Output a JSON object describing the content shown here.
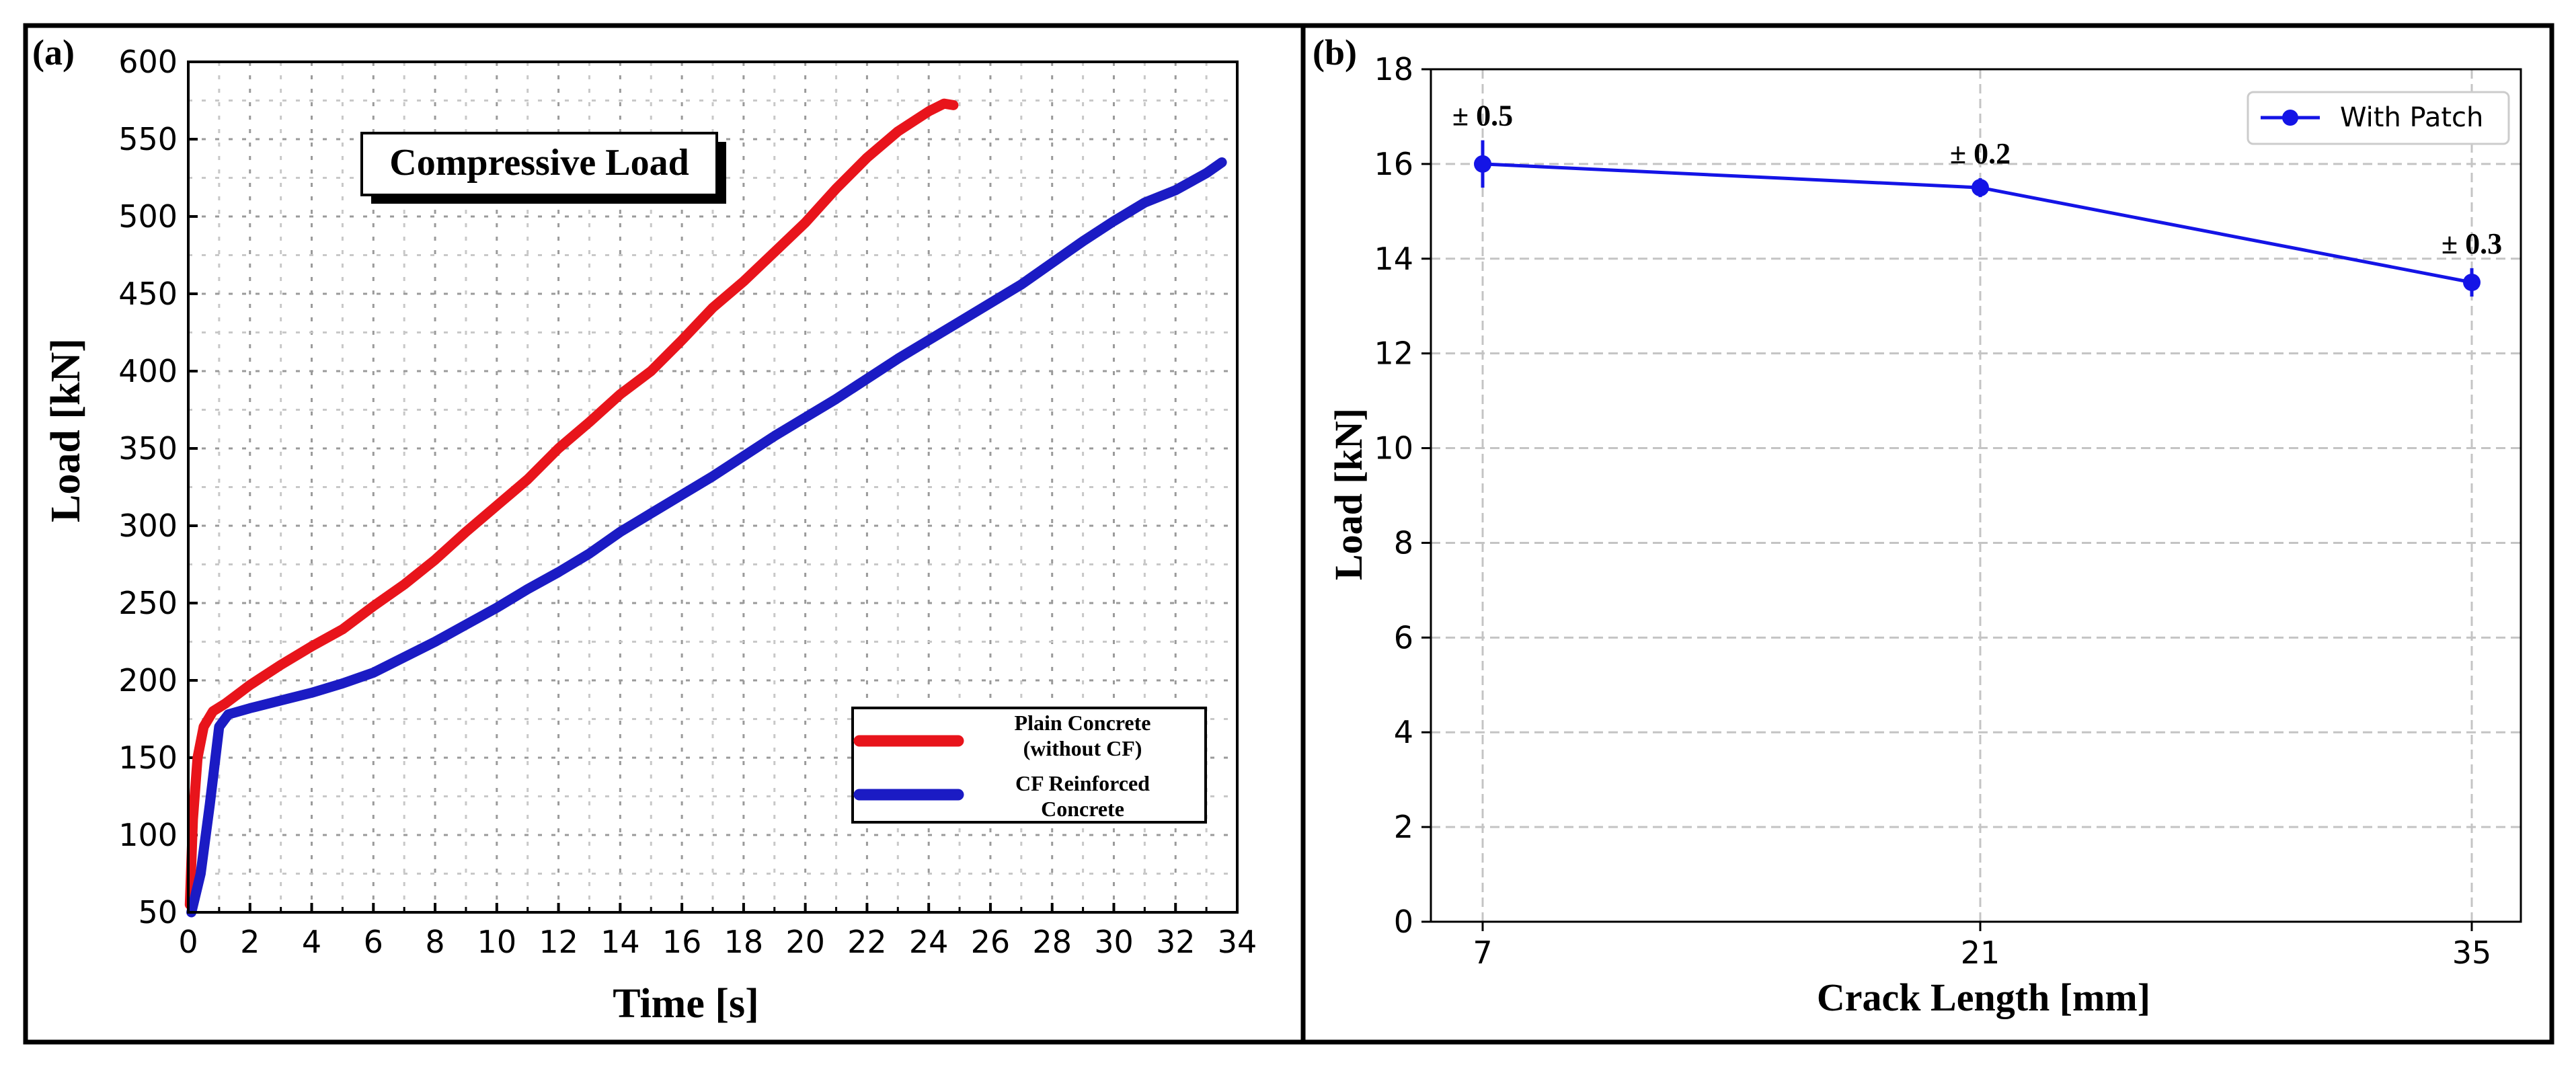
{
  "colors": {
    "plain": "#e8141b",
    "cf": "#1b1bc4",
    "patch": "#1414e6",
    "frame": "#000000",
    "grid_a": "#9a9a9a",
    "grid_b": "#c8c8c8"
  },
  "chart_data": [
    {
      "type": "line",
      "panel_label": "(a)",
      "title": "Compressive Load",
      "xlabel": "Time [s]",
      "ylabel": "Load [kN]",
      "xlim": [
        0,
        34
      ],
      "ylim": [
        50,
        600
      ],
      "x_ticks": [
        "0",
        "2",
        "4",
        "6",
        "8",
        "10",
        "12",
        "14",
        "16",
        "18",
        "20",
        "22",
        "24",
        "26",
        "28",
        "30",
        "32",
        "34"
      ],
      "y_ticks": [
        "50",
        "100",
        "150",
        "200",
        "250",
        "300",
        "350",
        "400",
        "450",
        "500",
        "550",
        "600"
      ],
      "grid": true,
      "legend": {
        "placement": "bottom-right",
        "entries": [
          {
            "line1": "Plain Concrete",
            "line2": "(without CF)"
          },
          {
            "line1": "CF Reinforced",
            "line2": "Concrete"
          }
        ]
      },
      "series": [
        {
          "name": "Plain Concrete (without CF)",
          "x": [
            0.05,
            0.15,
            0.3,
            0.5,
            0.8,
            1.2,
            2,
            3,
            4,
            5,
            6,
            7,
            8,
            9,
            10,
            11,
            12,
            13,
            14,
            15,
            16,
            17,
            18,
            19,
            20,
            21,
            22,
            23,
            24,
            24.5,
            24.8
          ],
          "y": [
            55,
            110,
            150,
            170,
            180,
            185,
            197,
            210,
            222,
            233,
            248,
            262,
            278,
            296,
            313,
            330,
            350,
            367,
            385,
            400,
            420,
            441,
            458,
            477,
            496,
            518,
            538,
            555,
            568,
            573,
            572
          ]
        },
        {
          "name": "CF Reinforced Concrete",
          "x": [
            0.1,
            0.4,
            0.7,
            1.0,
            1.3,
            2,
            3,
            4,
            5,
            6,
            7,
            8,
            9,
            10,
            11,
            12,
            13,
            14,
            15,
            16,
            17,
            18,
            19,
            20,
            21,
            22,
            23,
            24,
            25,
            26,
            27,
            28,
            29,
            30,
            31,
            32,
            33,
            33.5
          ],
          "y": [
            50,
            75,
            120,
            170,
            178,
            182,
            187,
            192,
            198,
            205,
            215,
            225,
            236,
            247,
            259,
            270,
            282,
            296,
            308,
            320,
            332,
            345,
            358,
            370,
            382,
            395,
            408,
            420,
            432,
            444,
            456,
            470,
            484,
            497,
            509,
            517,
            528,
            535
          ]
        }
      ]
    },
    {
      "type": "line",
      "panel_label": "(b)",
      "xlabel": "Crack Length [mm]",
      "ylabel": "Load [kN]",
      "categories": [
        "7",
        "21",
        "35"
      ],
      "ylim": [
        0,
        18
      ],
      "y_ticks": [
        "0",
        "2",
        "4",
        "6",
        "8",
        "10",
        "12",
        "14",
        "16",
        "18"
      ],
      "grid": true,
      "legend": {
        "placement": "top-right",
        "entries": [
          "With Patch"
        ]
      },
      "series": [
        {
          "name": "With Patch",
          "values": [
            16.0,
            15.5,
            13.5
          ],
          "errors": [
            0.5,
            0.2,
            0.3
          ],
          "error_labels": [
            "± 0.5",
            "± 0.2",
            "± 0.3"
          ]
        }
      ]
    }
  ]
}
